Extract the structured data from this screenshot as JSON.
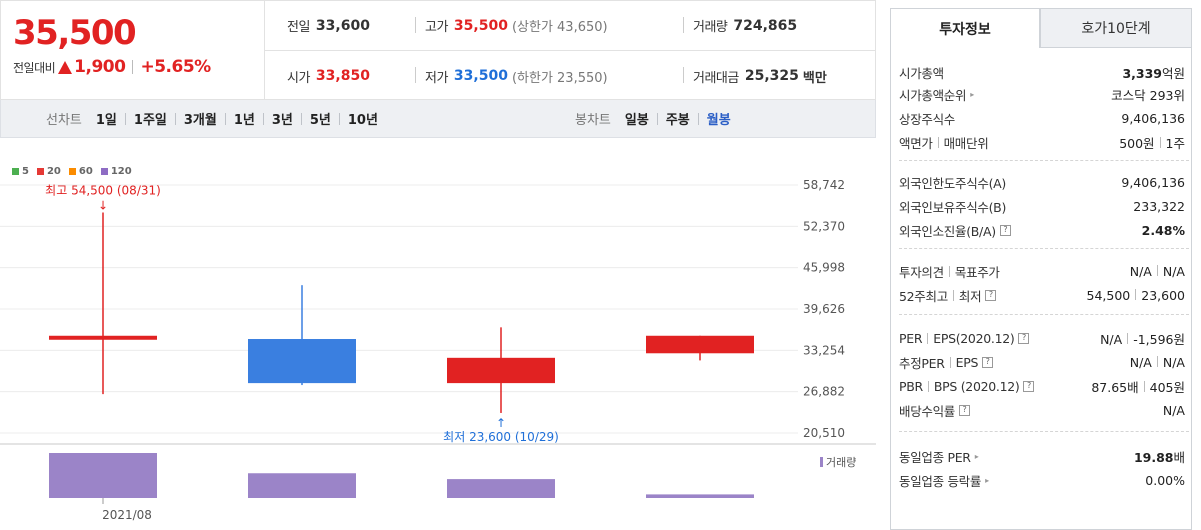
{
  "summary": {
    "price": "35,500",
    "change_label": "전일대비",
    "change_amount": "1,900",
    "change_pct": "+5.65%",
    "prev_close_label": "전일",
    "prev_close": "33,600",
    "high_label": "고가",
    "high": "35,500",
    "upper_limit": "(상한가 43,650)",
    "volume_label": "거래량",
    "volume": "724,865",
    "open_label": "시가",
    "open": "33,850",
    "low_label": "저가",
    "low": "33,500",
    "lower_limit": "(하한가 23,550)",
    "turnover_label": "거래대금",
    "turnover": "25,325",
    "turnover_unit": "백만"
  },
  "toolbar": {
    "line_chart_label": "선차트",
    "ranges": [
      "1일",
      "1주일",
      "3개월",
      "1년",
      "3년",
      "5년",
      "10년"
    ],
    "candle_label": "봉차트",
    "candle_types": [
      "일봉",
      "주봉",
      "월봉"
    ],
    "active_candle": "월봉"
  },
  "chart_data": {
    "type": "candlestick",
    "legend": [
      {
        "name": "5",
        "color": "#4caf50"
      },
      {
        "name": "20",
        "color": "#e53935"
      },
      {
        "name": "60",
        "color": "#fb8c00"
      },
      {
        "name": "120",
        "color": "#8e6cc4"
      }
    ],
    "y_ticks": [
      "58,742",
      "52,370",
      "45,998",
      "39,626",
      "33,254",
      "26,882",
      "20,510"
    ],
    "y_range": [
      20510,
      58742
    ],
    "x_tick_label": "2021/08",
    "candles": [
      {
        "open": 34900,
        "close": 35500,
        "high": 54500,
        "low": 26500,
        "color": "#e12222"
      },
      {
        "open": 35000,
        "close": 28200,
        "high": 43300,
        "low": 27900,
        "color": "#3a7fe0"
      },
      {
        "open": 28200,
        "close": 32100,
        "high": 36800,
        "low": 23600,
        "color": "#e12222"
      },
      {
        "open": 32800,
        "close": 35500,
        "high": 35500,
        "low": 31700,
        "color": "#e12222"
      }
    ],
    "volumes": [
      100,
      55,
      42,
      8
    ],
    "high_annotation": "최고 54,500 (08/31)",
    "low_annotation": "최저 23,600 (10/29)",
    "volume_label": "거래량",
    "up_color": "#e12222",
    "down_color": "#3a7fe0",
    "volume_color": "#9b84c8"
  },
  "panel": {
    "tab_invest": "투자정보",
    "tab_orderbook": "호가10단계",
    "market_cap_label": "시가총액",
    "market_cap_value": "3,339",
    "market_cap_unit": "억원",
    "market_cap_rank_label": "시가총액순위",
    "market_cap_rank_value": "코스닥 293위",
    "shares_label": "상장주식수",
    "shares_value": "9,406,136",
    "par_label": "액면가",
    "trade_unit_label": "매매단위",
    "par_value": "500원",
    "trade_unit_value": "1주",
    "foreign_limit_label": "외국인한도주식수(A)",
    "foreign_limit_value": "9,406,136",
    "foreign_hold_label": "외국인보유주식수(B)",
    "foreign_hold_value": "233,322",
    "foreign_ratio_label": "외국인소진율(B/A)",
    "foreign_ratio_value": "2.48%",
    "opinion_label": "투자의견",
    "target_label": "목표주가",
    "opinion_value": "N/A",
    "target_value": "N/A",
    "w52_high_label": "52주최고",
    "w52_low_label": "최저",
    "w52_high_value": "54,500",
    "w52_low_value": "23,600",
    "per_label": "PER",
    "eps_label": "EPS(2020.12)",
    "per_value": "N/A",
    "eps_value": "-1,596원",
    "est_per_label": "추정PER",
    "est_eps_label": "EPS",
    "est_per_value": "N/A",
    "est_eps_value": "N/A",
    "pbr_label": "PBR",
    "bps_label": "BPS (2020.12)",
    "pbr_value": "87.65배",
    "bps_value": "405원",
    "dividend_label": "배당수익률",
    "dividend_value": "N/A",
    "sector_per_label": "동일업종 PER",
    "sector_per_value": "19.88",
    "sector_per_unit": "배",
    "sector_change_label": "동일업종 등락률",
    "sector_change_value": "0.00%"
  }
}
